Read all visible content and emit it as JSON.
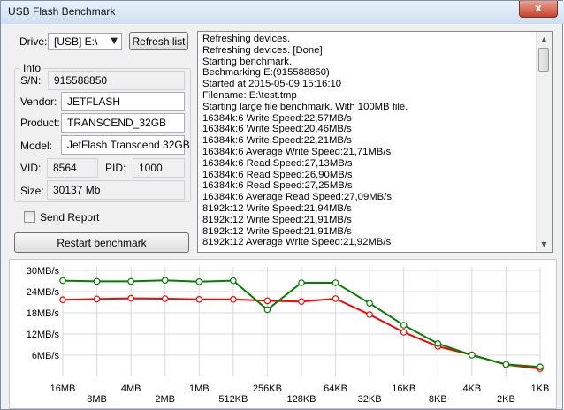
{
  "window": {
    "title": "USB Flash Benchmark",
    "close_glyph": "x"
  },
  "drive": {
    "label": "Drive:",
    "value": "[USB] E:\\"
  },
  "buttons": {
    "refresh": "Refresh list",
    "restart": "Restart benchmark"
  },
  "info": {
    "title": "Info",
    "sn_label": "S/N:",
    "sn": "915588850",
    "vendor_label": "Vendor:",
    "vendor": "JETFLASH",
    "product_label": "Product:",
    "product": "TRANSCEND_32GB",
    "model_label": "Model:",
    "model": "JetFlash Transcend 32GB",
    "vid_label": "VID:",
    "vid": "8564",
    "pid_label": "PID:",
    "pid": "1000",
    "size_label": "Size:",
    "size": "30137 Mb"
  },
  "send_report": {
    "label": "Send Report",
    "checked": false
  },
  "log": [
    "Refreshing devices.",
    "Refreshing devices. [Done]",
    "Starting benchmark.",
    "Bechmarking E:(915588850)",
    "Started at 2015-05-09 15:16:10",
    "Filename: E:\\test.tmp",
    "Starting large file benchmark. With 100MB file.",
    "16384k:6 Write Speed:22,57MB/s",
    "16384k:6 Write Speed:20,46MB/s",
    "16384k:6 Write Speed:22,21MB/s",
    "16384k:6 Average Write Speed:21,71MB/s",
    "16384k:6 Read Speed:27,13MB/s",
    "16384k:6 Read Speed:26,90MB/s",
    "16384k:6 Read Speed:27,25MB/s",
    "16384k:6 Average Read Speed:27,09MB/s",
    "8192k:12 Write Speed:21,94MB/s",
    "8192k:12 Write Speed:21,91MB/s",
    "8192k:12 Write Speed:21,91MB/s",
    "8192k:12 Average Write Speed:21,92MB/s"
  ],
  "colors": {
    "write_series": "#ff0000",
    "read_series": "#008000",
    "grid": "#d9d9d9"
  },
  "chart_data": {
    "type": "line",
    "categories": [
      "16MB",
      "8MB",
      "4MB",
      "2MB",
      "1MB",
      "512KB",
      "256KB",
      "128KB",
      "64KB",
      "32KB",
      "16KB",
      "8KB",
      "4KB",
      "2KB",
      "1KB"
    ],
    "y_ticks": [
      "30MB/s",
      "24MB/s",
      "18MB/s",
      "12MB/s",
      "6MB/s"
    ],
    "ylim": [
      0,
      31
    ],
    "grid": true,
    "series": [
      {
        "color": "#ff0000",
        "values": [
          21.7,
          21.9,
          22.1,
          22.0,
          21.8,
          21.8,
          21.4,
          21.2,
          22.0,
          17.5,
          12.5,
          8.5,
          6.1,
          3.3,
          2.2
        ]
      },
      {
        "color": "#008000",
        "values": [
          27.1,
          26.9,
          26.9,
          27.2,
          26.8,
          27.1,
          18.9,
          26.5,
          26.5,
          20.7,
          14.5,
          9.3,
          6.0,
          3.4,
          2.7
        ]
      }
    ]
  }
}
